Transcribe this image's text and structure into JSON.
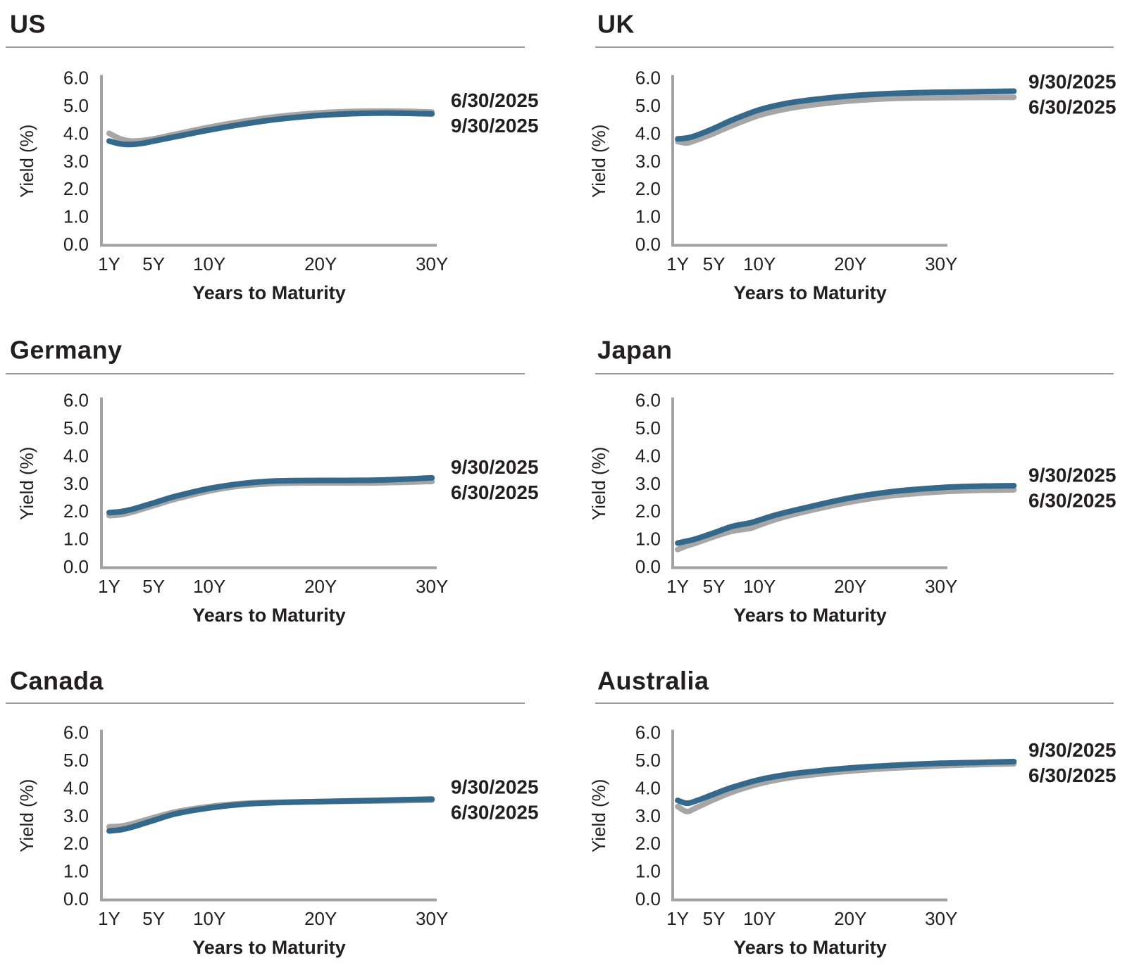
{
  "page": {
    "background": "#ffffff"
  },
  "colors": {
    "series_blue": "#35698B",
    "series_gray": "#A6A6A6",
    "legend_gray_text": "#9D9D9D",
    "text_dark": "#231F20",
    "axis_gray": "#A2A2A2",
    "rule_gray": "#9B9B9B"
  },
  "axis": {
    "ylabel": "Yield (%)",
    "xlabel": "Years to Maturity",
    "ylim": [
      0.0,
      6.0
    ],
    "grid": false,
    "yticks": [
      {
        "label": "6.0",
        "value": 6.0
      },
      {
        "label": "5.0",
        "value": 5.0
      },
      {
        "label": "4.0",
        "value": 4.0
      },
      {
        "label": "3.0",
        "value": 3.0
      },
      {
        "label": "2.0",
        "value": 2.0
      },
      {
        "label": "1.0",
        "value": 1.0
      },
      {
        "label": "0.0",
        "value": 0.0
      }
    ],
    "xticks": [
      {
        "label": "1Y",
        "year": 1
      },
      {
        "label": "5Y",
        "year": 5
      },
      {
        "label": "10Y",
        "year": 10
      },
      {
        "label": "20Y",
        "year": 20
      },
      {
        "label": "30Y",
        "year": 30
      }
    ]
  },
  "chart_data": [
    {
      "title": "US",
      "type": "line",
      "legend_position": "right-of-line-end",
      "series": [
        {
          "name": "9/30/2025",
          "color_key": "blue",
          "x": [
            1,
            2,
            3,
            4,
            5,
            7,
            10,
            13,
            16,
            20,
            23,
            26,
            30
          ],
          "y": [
            3.72,
            3.62,
            3.6,
            3.64,
            3.72,
            3.88,
            4.12,
            4.33,
            4.5,
            4.65,
            4.71,
            4.73,
            4.7
          ]
        },
        {
          "name": "6/30/2025",
          "color_key": "gray",
          "x": [
            1,
            2,
            3,
            4,
            5,
            7,
            10,
            13,
            16,
            20,
            23,
            26,
            30
          ],
          "y": [
            4.0,
            3.8,
            3.72,
            3.74,
            3.8,
            3.97,
            4.22,
            4.43,
            4.6,
            4.74,
            4.79,
            4.8,
            4.77
          ]
        }
      ]
    },
    {
      "title": "UK",
      "type": "line",
      "legend_position": "right-of-line-end",
      "series": [
        {
          "name": "9/30/2025",
          "color_key": "blue",
          "x": [
            1,
            2,
            3,
            5,
            7,
            10,
            13,
            16,
            20,
            24,
            28,
            32,
            38
          ],
          "y": [
            3.8,
            3.83,
            3.92,
            4.18,
            4.48,
            4.85,
            5.08,
            5.22,
            5.35,
            5.43,
            5.47,
            5.49,
            5.52
          ]
        },
        {
          "name": "6/30/2025",
          "color_key": "gray",
          "x": [
            1,
            2,
            3,
            5,
            7,
            10,
            13,
            16,
            20,
            24,
            28,
            32,
            38
          ],
          "y": [
            3.7,
            3.65,
            3.75,
            4.0,
            4.28,
            4.65,
            4.88,
            5.03,
            5.17,
            5.25,
            5.28,
            5.29,
            5.3
          ]
        }
      ]
    },
    {
      "title": "Germany",
      "type": "line",
      "legend_position": "right-of-line-end",
      "series": [
        {
          "name": "9/30/2025",
          "color_key": "blue",
          "x": [
            1,
            2,
            3,
            5,
            7,
            10,
            13,
            16,
            20,
            25,
            30
          ],
          "y": [
            1.95,
            1.98,
            2.06,
            2.3,
            2.54,
            2.82,
            3.0,
            3.09,
            3.11,
            3.12,
            3.2
          ]
        },
        {
          "name": "6/30/2025",
          "color_key": "gray",
          "x": [
            1,
            2,
            3,
            5,
            7,
            10,
            13,
            16,
            20,
            25,
            30
          ],
          "y": [
            1.84,
            1.87,
            1.96,
            2.2,
            2.44,
            2.73,
            2.92,
            3.0,
            3.02,
            3.02,
            3.07
          ]
        }
      ]
    },
    {
      "title": "Japan",
      "type": "line",
      "legend_position": "right-of-line-end",
      "series": [
        {
          "name": "9/30/2025",
          "color_key": "blue",
          "x": [
            1,
            2,
            3,
            5,
            7,
            9,
            10,
            12,
            15,
            20,
            25,
            30,
            34,
            38
          ],
          "y": [
            0.85,
            0.92,
            1.0,
            1.22,
            1.45,
            1.58,
            1.68,
            1.88,
            2.12,
            2.48,
            2.72,
            2.85,
            2.9,
            2.92
          ]
        },
        {
          "name": "6/30/2025",
          "color_key": "gray",
          "x": [
            1,
            2,
            3,
            5,
            7,
            9,
            10,
            12,
            15,
            20,
            25,
            30,
            34,
            38
          ],
          "y": [
            0.62,
            0.75,
            0.85,
            1.08,
            1.28,
            1.38,
            1.5,
            1.72,
            1.98,
            2.33,
            2.57,
            2.7,
            2.75,
            2.77
          ]
        }
      ]
    },
    {
      "title": "Canada",
      "type": "line",
      "legend_position": "right-of-line-end",
      "series": [
        {
          "name": "9/30/2025",
          "color_key": "blue",
          "x": [
            1,
            2,
            3,
            5,
            7,
            10,
            13,
            16,
            20,
            25,
            30
          ],
          "y": [
            2.45,
            2.49,
            2.58,
            2.83,
            3.07,
            3.28,
            3.41,
            3.47,
            3.51,
            3.55,
            3.6
          ]
        },
        {
          "name": "6/30/2025",
          "color_key": "gray",
          "x": [
            1,
            2,
            3,
            5,
            7,
            10,
            13,
            16,
            20,
            25,
            30
          ],
          "y": [
            2.6,
            2.62,
            2.7,
            2.93,
            3.14,
            3.33,
            3.44,
            3.48,
            3.51,
            3.53,
            3.56
          ]
        }
      ]
    },
    {
      "title": "Australia",
      "type": "line",
      "legend_position": "right-of-line-end",
      "series": [
        {
          "name": "9/30/2025",
          "color_key": "blue",
          "x": [
            1,
            2,
            3,
            5,
            7,
            10,
            13,
            16,
            20,
            25,
            30,
            34,
            38
          ],
          "y": [
            3.55,
            3.45,
            3.53,
            3.78,
            4.02,
            4.3,
            4.48,
            4.6,
            4.72,
            4.82,
            4.89,
            4.92,
            4.95
          ]
        },
        {
          "name": "6/30/2025",
          "color_key": "gray",
          "x": [
            1,
            2,
            3,
            5,
            7,
            10,
            13,
            16,
            20,
            25,
            30,
            34,
            38
          ],
          "y": [
            3.33,
            3.15,
            3.28,
            3.58,
            3.85,
            4.15,
            4.35,
            4.48,
            4.61,
            4.72,
            4.8,
            4.84,
            4.87
          ]
        }
      ]
    }
  ]
}
